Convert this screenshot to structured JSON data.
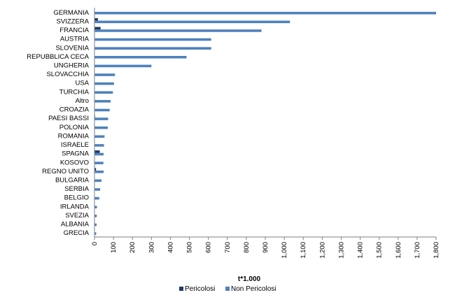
{
  "chart_data": {
    "type": "bar",
    "orientation": "horizontal",
    "title": "",
    "xlabel": "t*1.000",
    "ylabel": "",
    "xlim": [
      0,
      1800
    ],
    "x_ticks": [
      0,
      100,
      200,
      300,
      400,
      500,
      600,
      700,
      800,
      900,
      1000,
      1100,
      1200,
      1300,
      1400,
      1500,
      1600,
      1700,
      1800
    ],
    "x_tick_labels": [
      "0",
      "100",
      "200",
      "300",
      "400",
      "500",
      "600",
      "700",
      "800",
      "900",
      "1,000",
      "1,100",
      "1,200",
      "1,300",
      "1,400",
      "1,500",
      "1,600",
      "1,700",
      "1,800"
    ],
    "grid": false,
    "legend_position": "bottom",
    "categories": [
      "GERMANIA",
      "SVIZZERA",
      "FRANCIA",
      "AUSTRIA",
      "SLOVENIA",
      "REPUBBLICA CECA",
      "UNGHERIA",
      "SLOVACCHIA",
      "USA",
      "TURCHIA",
      "Altro",
      "CROAZIA",
      "PAESI BASSI",
      "POLONIA",
      "ROMANIA",
      "ISRAELE",
      "SPAGNA",
      "KOSOVO",
      "REGNO UNITO",
      "BULGARIA",
      "SERBIA",
      "BELGIO",
      "IRLANDA",
      "SVEZIA",
      "ALBANIA",
      "GRECIA"
    ],
    "series": [
      {
        "name": "Pericolosi",
        "color": "#1f3a5f",
        "values": [
          1,
          18,
          32,
          2,
          2,
          1,
          1,
          1,
          1,
          1,
          2,
          1,
          3,
          2,
          1,
          1,
          28,
          1,
          8,
          1,
          1,
          1,
          1,
          1,
          1,
          1
        ]
      },
      {
        "name": "Non Pericolosi",
        "color": "#4f81bd",
        "values": [
          1800,
          1030,
          880,
          615,
          615,
          485,
          300,
          108,
          103,
          97,
          85,
          80,
          72,
          70,
          53,
          50,
          48,
          47,
          48,
          37,
          30,
          25,
          13,
          12,
          11,
          9
        ]
      }
    ]
  }
}
